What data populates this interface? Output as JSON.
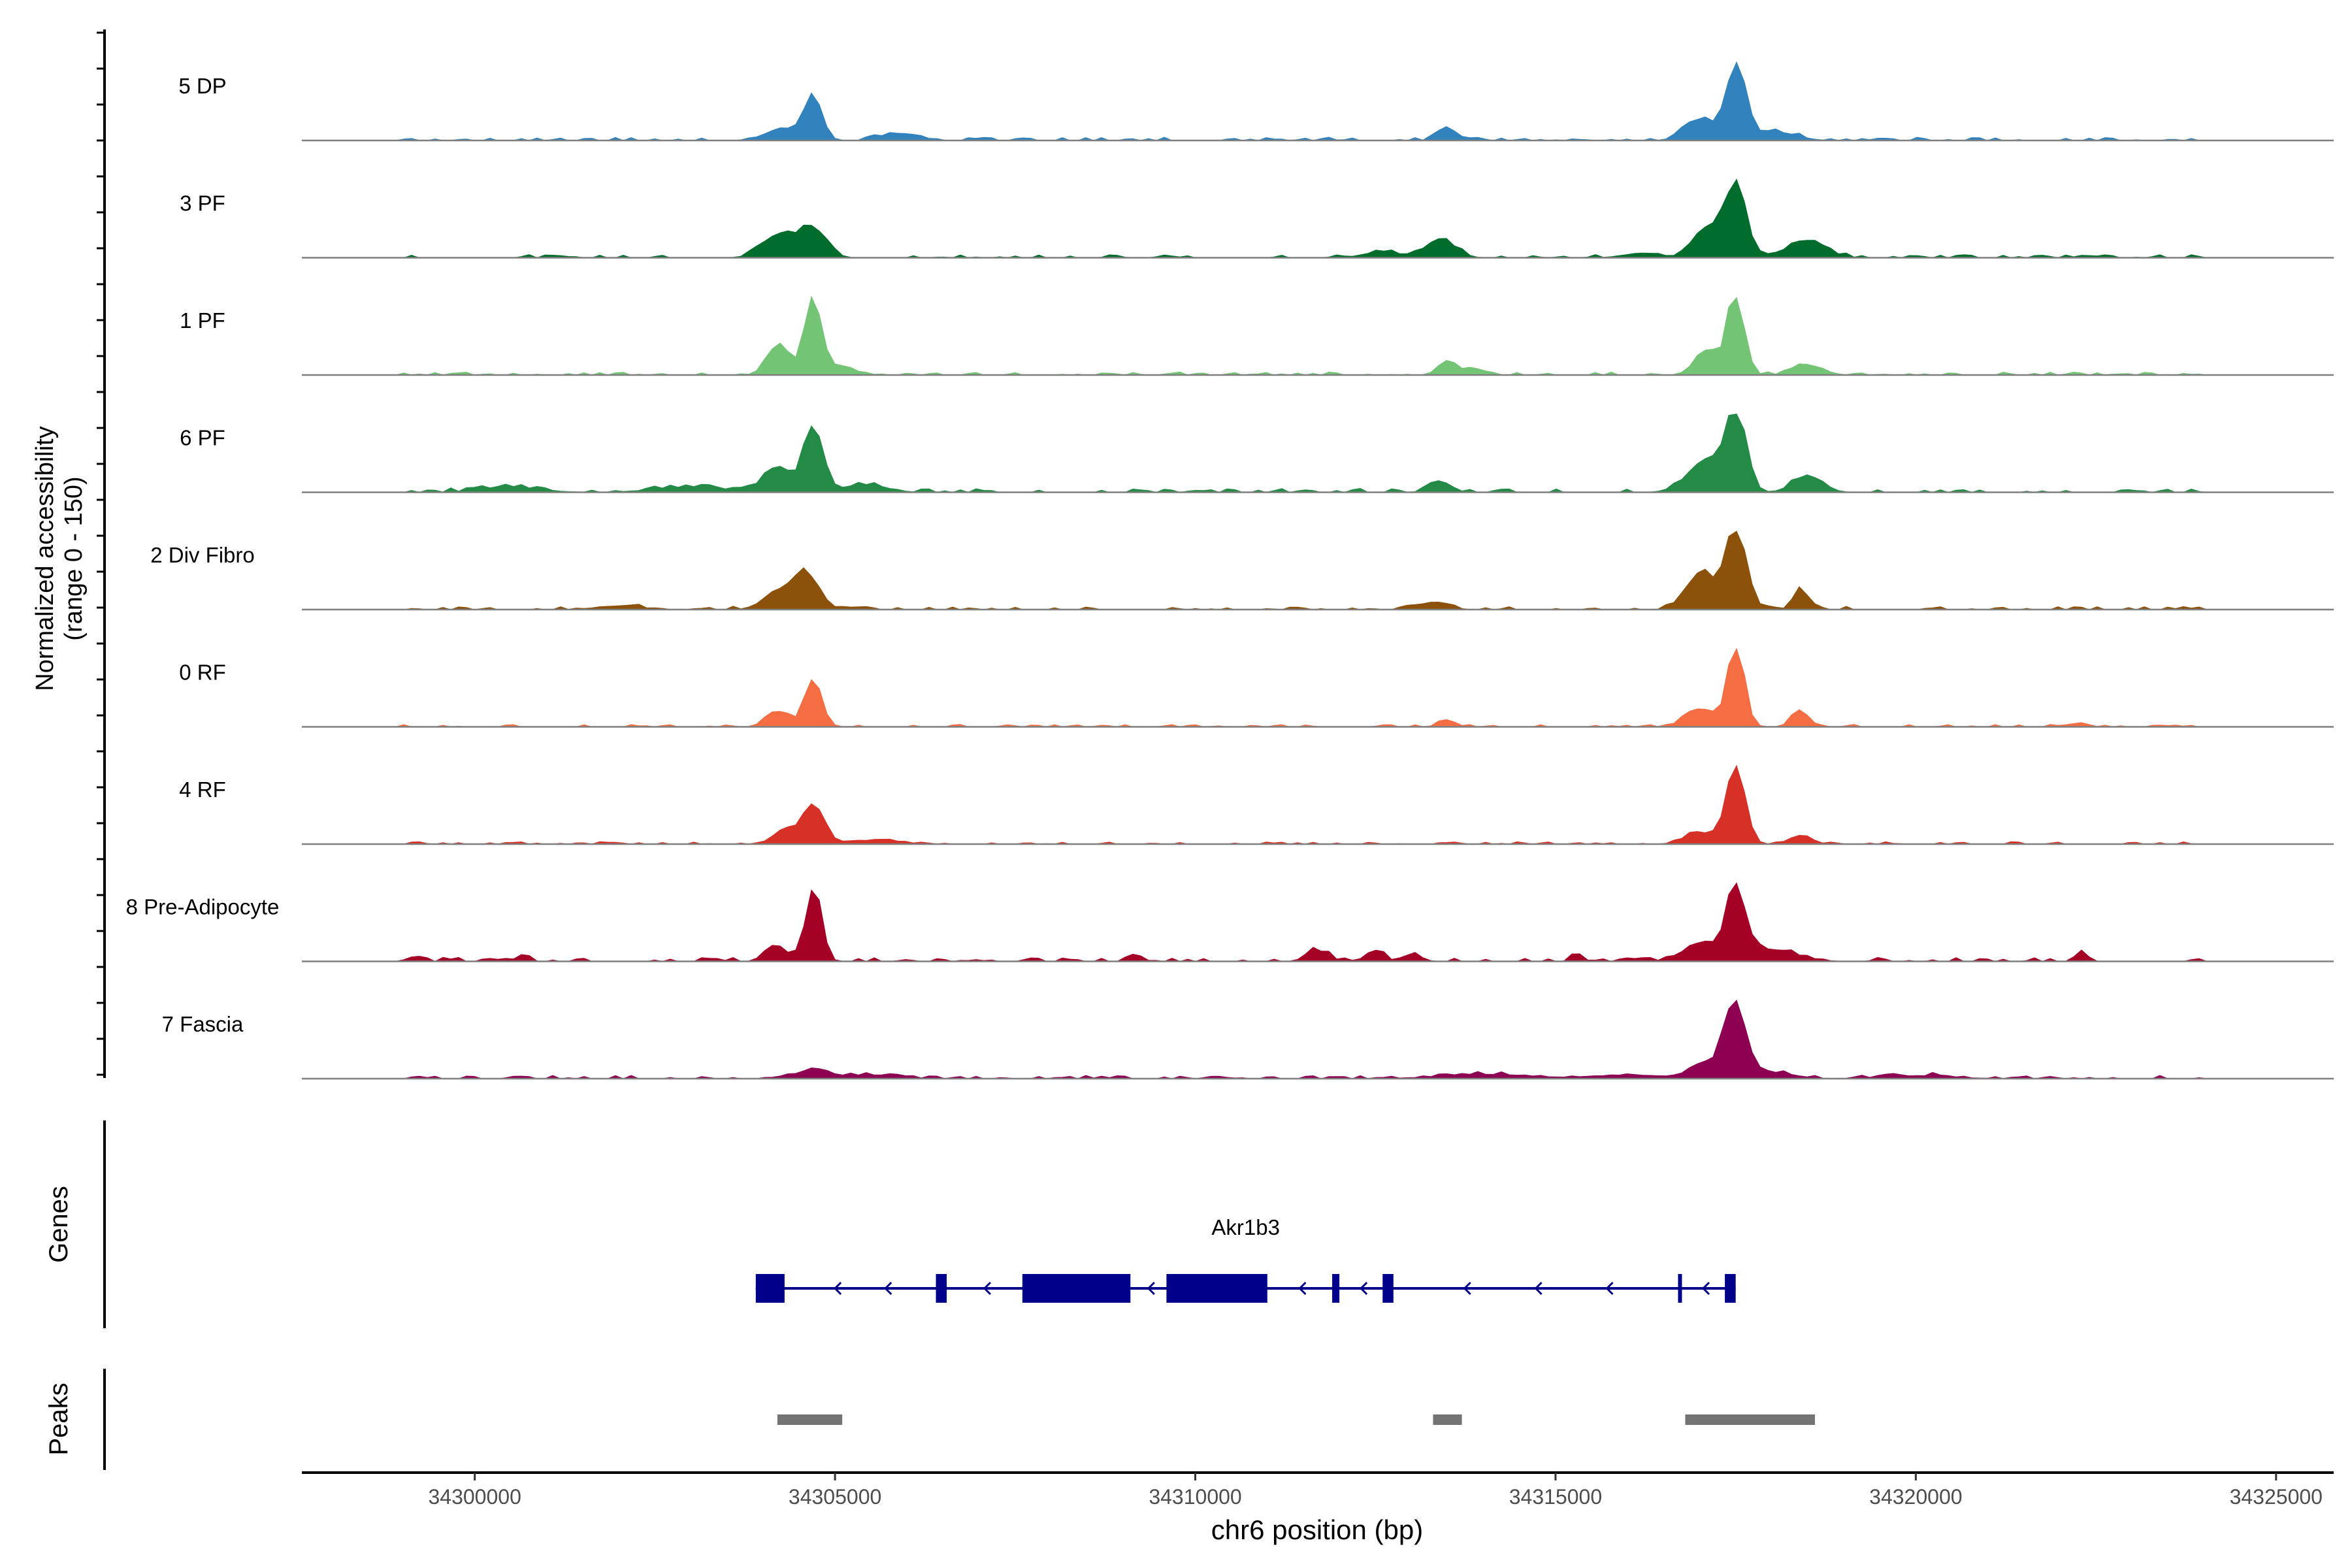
{
  "chart_data": {
    "type": "area",
    "title": "",
    "y_axis_label": [
      "Normalized accessibility",
      "(range 0 - 150)"
    ],
    "y_range": [
      0,
      150
    ],
    "x_label": "chr6 position (bp)",
    "x_range": [
      34297600,
      34325800
    ],
    "x_ticks": [
      {
        "value": 34300000,
        "label": "34300000"
      },
      {
        "value": 34305000,
        "label": "34305000"
      },
      {
        "value": 34310000,
        "label": "34310000"
      },
      {
        "value": 34315000,
        "label": "34315000"
      },
      {
        "value": 34320000,
        "label": "34320000"
      },
      {
        "value": 34325000,
        "label": "34325000"
      }
    ],
    "coverage_tracks": [
      {
        "name": "5 DP",
        "color": "#3182BD",
        "peaks": [
          [
            34304700,
            0.55,
            120
          ],
          [
            34304300,
            0.16,
            250
          ],
          [
            34305900,
            0.1,
            250
          ],
          [
            34313500,
            0.17,
            130
          ],
          [
            34317500,
            1.0,
            130
          ],
          [
            34317000,
            0.28,
            200
          ],
          [
            34318000,
            0.12,
            300
          ]
        ],
        "noise_span": [
          34299000,
          34324000
        ],
        "noise_level": 0.04
      },
      {
        "name": "3 PF",
        "color": "#006D2C",
        "peaks": [
          [
            34304700,
            0.4,
            180
          ],
          [
            34304200,
            0.28,
            220
          ],
          [
            34313400,
            0.25,
            200
          ],
          [
            34312600,
            0.08,
            250
          ],
          [
            34317500,
            1.0,
            140
          ],
          [
            34317100,
            0.4,
            180
          ],
          [
            34318500,
            0.22,
            250
          ],
          [
            34316200,
            0.06,
            250
          ]
        ],
        "noise_span": [
          34299000,
          34324000
        ],
        "noise_level": 0.04
      },
      {
        "name": "1 PF",
        "color": "#74C476",
        "peaks": [
          [
            34304700,
            1.0,
            120
          ],
          [
            34304200,
            0.38,
            150
          ],
          [
            34305100,
            0.1,
            200
          ],
          [
            34313500,
            0.18,
            130
          ],
          [
            34313900,
            0.08,
            150
          ],
          [
            34317500,
            1.0,
            120
          ],
          [
            34317100,
            0.3,
            170
          ],
          [
            34318500,
            0.14,
            200
          ]
        ],
        "noise_span": [
          34299000,
          34324000
        ],
        "noise_level": 0.04
      },
      {
        "name": "6 PF",
        "color": "#238B45",
        "peaks": [
          [
            34304700,
            0.9,
            130
          ],
          [
            34304200,
            0.3,
            200
          ],
          [
            34305400,
            0.1,
            300
          ],
          [
            34313400,
            0.14,
            150
          ],
          [
            34317500,
            1.0,
            140
          ],
          [
            34317100,
            0.4,
            260
          ],
          [
            34318500,
            0.22,
            200
          ],
          [
            34300500,
            0.07,
            400
          ],
          [
            34303000,
            0.07,
            500
          ]
        ],
        "noise_span": [
          34299000,
          34324000
        ],
        "noise_level": 0.05
      },
      {
        "name": "2 Div Fibro",
        "color": "#8C510A",
        "peaks": [
          [
            34304600,
            0.45,
            180
          ],
          [
            34304200,
            0.22,
            200
          ],
          [
            34313300,
            0.1,
            200
          ],
          [
            34317500,
            1.0,
            150
          ],
          [
            34317000,
            0.48,
            200
          ],
          [
            34318400,
            0.28,
            100
          ],
          [
            34302000,
            0.05,
            300
          ]
        ],
        "noise_span": [
          34299000,
          34324000
        ],
        "noise_level": 0.04
      },
      {
        "name": "0 RF",
        "color": "#F46D43",
        "peaks": [
          [
            34304700,
            0.62,
            120
          ],
          [
            34304200,
            0.22,
            150
          ],
          [
            34313500,
            0.08,
            120
          ],
          [
            34317500,
            1.0,
            120
          ],
          [
            34317000,
            0.22,
            200
          ],
          [
            34318400,
            0.22,
            120
          ],
          [
            34322300,
            0.05,
            100
          ]
        ],
        "noise_span": [
          34299000,
          34324000
        ],
        "noise_level": 0.03
      },
      {
        "name": "4 RF",
        "color": "#D73027",
        "peaks": [
          [
            34304700,
            0.55,
            150
          ],
          [
            34304300,
            0.16,
            150
          ],
          [
            34305600,
            0.06,
            300
          ],
          [
            34317500,
            1.0,
            130
          ],
          [
            34317000,
            0.15,
            200
          ],
          [
            34318400,
            0.12,
            150
          ]
        ],
        "noise_span": [
          34299000,
          34324000
        ],
        "noise_level": 0.03
      },
      {
        "name": "8 Pre-Adipocyte",
        "color": "#A50026",
        "peaks": [
          [
            34304700,
            1.0,
            110
          ],
          [
            34304200,
            0.18,
            150
          ],
          [
            34317500,
            1.0,
            130
          ],
          [
            34317000,
            0.22,
            250
          ],
          [
            34318000,
            0.15,
            350
          ],
          [
            34299200,
            0.07,
            80
          ],
          [
            34300700,
            0.05,
            80
          ],
          [
            34309200,
            0.08,
            80
          ],
          [
            34311700,
            0.14,
            150
          ],
          [
            34312500,
            0.15,
            120
          ],
          [
            34313000,
            0.1,
            80
          ],
          [
            34315300,
            0.1,
            80
          ],
          [
            34322300,
            0.14,
            80
          ]
        ],
        "noise_span": [
          34299000,
          34324000
        ],
        "noise_level": 0.05
      },
      {
        "name": "7 Fascia",
        "color": "#8E0152",
        "peaks": [
          [
            34304700,
            0.13,
            200
          ],
          [
            34305500,
            0.05,
            400
          ],
          [
            34317500,
            1.0,
            140
          ],
          [
            34317100,
            0.22,
            220
          ],
          [
            34318000,
            0.08,
            300
          ],
          [
            34314000,
            0.06,
            600
          ],
          [
            34316000,
            0.05,
            500
          ],
          [
            34320000,
            0.04,
            500
          ]
        ],
        "noise_span": [
          34299000,
          34324000
        ],
        "noise_level": 0.04
      }
    ],
    "genes_track": {
      "label": "Genes",
      "color": "#00008B",
      "gene": {
        "name": "Akr1b3",
        "strand": "-",
        "start": 34303900,
        "end": 34317500,
        "exons": [
          [
            34303900,
            34304300
          ],
          [
            34306400,
            34306550
          ],
          [
            34307600,
            34309100
          ],
          [
            34309600,
            34311000
          ],
          [
            34311900,
            34312000
          ],
          [
            34312600,
            34312750
          ],
          [
            34316700,
            34316750
          ],
          [
            34317350,
            34317500
          ]
        ]
      }
    },
    "peaks_track": {
      "label": "Peaks",
      "color": "#737373",
      "intervals": [
        [
          34304200,
          34305100
        ],
        [
          34313300,
          34313700
        ],
        [
          34316800,
          34318600
        ]
      ]
    }
  }
}
